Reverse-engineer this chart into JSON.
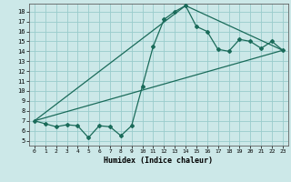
{
  "title": "",
  "xlabel": "Humidex (Indice chaleur)",
  "bg_color": "#cce8e8",
  "grid_color": "#99cccc",
  "line_color": "#1a6b5a",
  "marker_color": "#1a6b5a",
  "xlim": [
    -0.5,
    23.5
  ],
  "ylim": [
    4.5,
    18.8
  ],
  "xticks": [
    0,
    1,
    2,
    3,
    4,
    5,
    6,
    7,
    8,
    9,
    10,
    11,
    12,
    13,
    14,
    15,
    16,
    17,
    18,
    19,
    20,
    21,
    22,
    23
  ],
  "yticks": [
    5,
    6,
    7,
    8,
    9,
    10,
    11,
    12,
    13,
    14,
    15,
    16,
    17,
    18
  ],
  "series1_x": [
    0,
    1,
    2,
    3,
    4,
    5,
    6,
    7,
    8,
    9,
    10,
    11,
    12,
    13,
    14,
    15,
    16,
    17,
    18,
    19,
    20,
    21,
    22,
    23
  ],
  "series1_y": [
    7.0,
    6.7,
    6.4,
    6.6,
    6.5,
    5.3,
    6.5,
    6.4,
    5.5,
    6.5,
    10.5,
    14.5,
    17.2,
    18.0,
    18.6,
    16.5,
    16.0,
    14.2,
    14.0,
    15.2,
    15.0,
    14.3,
    15.0,
    14.1
  ],
  "series2_x": [
    0,
    14,
    23
  ],
  "series2_y": [
    7.0,
    18.6,
    14.1
  ],
  "series3_x": [
    0,
    23
  ],
  "series3_y": [
    7.0,
    14.1
  ]
}
